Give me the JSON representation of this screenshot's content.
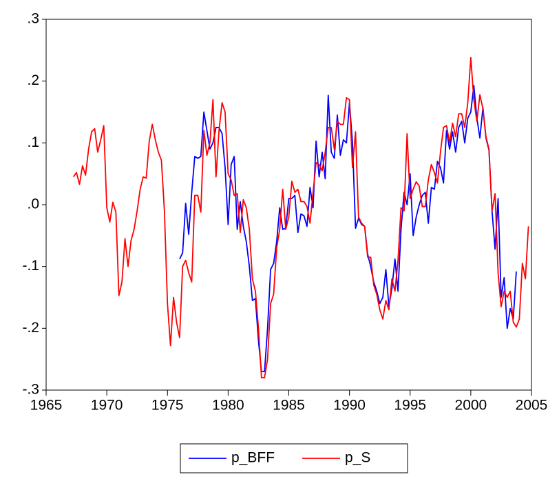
{
  "chart_data": {
    "type": "line",
    "xlim": [
      1965,
      2005
    ],
    "xticks": [
      1965,
      1970,
      1975,
      1980,
      1985,
      1990,
      1995,
      2000,
      2005
    ],
    "ylim": [
      -0.3,
      0.3
    ],
    "yticks": [
      {
        "value": -0.3,
        "label": "-.3"
      },
      {
        "value": -0.2,
        "label": "-.2"
      },
      {
        "value": -0.1,
        "label": "-.1"
      },
      {
        "value": 0,
        "label": ".0"
      },
      {
        "value": 0.1,
        "label": ".1"
      },
      {
        "value": 0.2,
        "label": ".2"
      },
      {
        "value": 0.3,
        "label": ".3"
      }
    ],
    "grid": false,
    "legend": "bottom",
    "series": [
      {
        "name": "p_BFF",
        "color": "#0000ff",
        "x": [
          1976,
          1976.25,
          1976.5,
          1976.75,
          1977,
          1977.25,
          1977.5,
          1977.75,
          1978,
          1978.25,
          1978.5,
          1978.75,
          1979,
          1979.25,
          1979.5,
          1979.75,
          1980,
          1980.25,
          1980.5,
          1980.75,
          1981,
          1981.25,
          1981.5,
          1981.75,
          1982,
          1982.25,
          1982.5,
          1982.75,
          1983,
          1983.25,
          1983.5,
          1983.75,
          1984,
          1984.25,
          1984.5,
          1984.75,
          1985,
          1985.25,
          1985.5,
          1985.75,
          1986,
          1986.25,
          1986.5,
          1986.75,
          1987,
          1987.25,
          1987.5,
          1987.75,
          1988,
          1988.25,
          1988.5,
          1988.75,
          1989,
          1989.25,
          1989.5,
          1989.75,
          1990,
          1990.25,
          1990.5,
          1990.75,
          1991,
          1991.25,
          1991.5,
          1991.75,
          1992,
          1992.25,
          1992.5,
          1992.75,
          1993,
          1993.25,
          1993.5,
          1993.75,
          1994,
          1994.25,
          1994.5,
          1994.75,
          1995,
          1995.25,
          1995.5,
          1995.75,
          1996,
          1996.25,
          1996.5,
          1996.75,
          1997,
          1997.25,
          1997.5,
          1997.75,
          1998,
          1998.25,
          1998.5,
          1998.75,
          1999,
          1999.25,
          1999.5,
          1999.75,
          2000,
          2000.25,
          2000.5,
          2000.75,
          2001,
          2001.25,
          2001.5,
          2001.75,
          2002,
          2002.25,
          2002.5,
          2002.75,
          2003,
          2003.25,
          2003.5,
          2003.75
        ],
        "values": [
          -0.088,
          -0.078,
          0.002,
          -0.048,
          0.02,
          0.078,
          0.075,
          0.078,
          0.15,
          0.12,
          0.09,
          0.1,
          0.125,
          0.125,
          0.115,
          0.06,
          -0.032,
          0.065,
          0.078,
          -0.04,
          0.005,
          -0.035,
          -0.06,
          -0.1,
          -0.155,
          -0.152,
          -0.22,
          -0.27,
          -0.27,
          -0.2,
          -0.105,
          -0.095,
          -0.06,
          -0.005,
          -0.04,
          -0.038,
          0.01,
          0.01,
          0.015,
          -0.045,
          -0.015,
          -0.018,
          -0.035,
          0.028,
          -0.005,
          0.103,
          0.045,
          0.085,
          0.042,
          0.177,
          0.085,
          0.075,
          0.145,
          0.08,
          0.105,
          0.1,
          0.165,
          0.1,
          -0.038,
          -0.022,
          -0.032,
          -0.035,
          -0.08,
          -0.1,
          -0.125,
          -0.14,
          -0.16,
          -0.15,
          -0.105,
          -0.165,
          -0.135,
          -0.088,
          -0.14,
          -0.04,
          0.02,
          0,
          0.05,
          -0.05,
          -0.02,
          0,
          0.015,
          0.02,
          -0.03,
          0.028,
          0.025,
          0.07,
          0.06,
          0.035,
          0.12,
          0.09,
          0.118,
          0.085,
          0.125,
          0.135,
          0.1,
          0.14,
          0.15,
          0.193,
          0.14,
          0.108,
          0.157,
          0.108,
          0.088,
          -0.01,
          -0.072,
          0.01,
          -0.15,
          -0.118,
          -0.2,
          -0.168,
          -0.185,
          -0.108
        ]
      },
      {
        "name": "p_S",
        "color": "#ff0000",
        "x": [
          1967.25,
          1967.5,
          1967.75,
          1968,
          1968.25,
          1968.5,
          1968.75,
          1969,
          1969.25,
          1969.5,
          1969.75,
          1970,
          1970.25,
          1970.5,
          1970.75,
          1971,
          1971.25,
          1971.5,
          1971.75,
          1972,
          1972.25,
          1972.5,
          1972.75,
          1973,
          1973.25,
          1973.5,
          1973.75,
          1974,
          1974.25,
          1974.5,
          1974.75,
          1975,
          1975.25,
          1975.5,
          1975.75,
          1976,
          1976.25,
          1976.5,
          1976.75,
          1977,
          1977.25,
          1977.5,
          1977.75,
          1978,
          1978.25,
          1978.5,
          1978.75,
          1979,
          1979.25,
          1979.5,
          1979.75,
          1980,
          1980.25,
          1980.5,
          1980.75,
          1981,
          1981.25,
          1981.5,
          1981.75,
          1982,
          1982.25,
          1982.5,
          1982.75,
          1983,
          1983.25,
          1983.5,
          1983.75,
          1984,
          1984.25,
          1984.5,
          1984.75,
          1985,
          1985.25,
          1985.5,
          1985.75,
          1986,
          1986.25,
          1986.5,
          1986.75,
          1987,
          1987.25,
          1987.5,
          1987.75,
          1988,
          1988.25,
          1988.5,
          1988.75,
          1989,
          1989.25,
          1989.5,
          1989.75,
          1990,
          1990.25,
          1990.5,
          1990.75,
          1991,
          1991.25,
          1991.5,
          1991.75,
          1992,
          1992.25,
          1992.5,
          1992.75,
          1993,
          1993.25,
          1993.5,
          1993.75,
          1994,
          1994.25,
          1994.5,
          1994.75,
          1995,
          1995.25,
          1995.5,
          1995.75,
          1996,
          1996.25,
          1996.5,
          1996.75,
          1997,
          1997.25,
          1997.5,
          1997.75,
          1998,
          1998.25,
          1998.5,
          1998.75,
          1999,
          1999.25,
          1999.5,
          1999.75,
          2000,
          2000.25,
          2000.5,
          2000.75,
          2001,
          2001.25,
          2001.5,
          2001.75,
          2002,
          2002.25,
          2002.5,
          2002.75,
          2003,
          2003.25,
          2003.5,
          2003.75,
          2004,
          2004.25,
          2004.5,
          2004.75
        ],
        "values": [
          0.045,
          0.052,
          0.033,
          0.063,
          0.048,
          0.09,
          0.118,
          0.123,
          0.085,
          0.105,
          0.128,
          -0.005,
          -0.028,
          0.004,
          -0.012,
          -0.147,
          -0.125,
          -0.055,
          -0.1,
          -0.058,
          -0.04,
          -0.01,
          0.025,
          0.045,
          0.043,
          0.103,
          0.13,
          0.105,
          0.085,
          0.072,
          -0.01,
          -0.16,
          -0.228,
          -0.15,
          -0.19,
          -0.215,
          -0.1,
          -0.09,
          -0.11,
          -0.125,
          0.015,
          0.015,
          -0.012,
          0.12,
          0.08,
          0.1,
          0.17,
          0.045,
          0.12,
          0.165,
          0.15,
          0.05,
          0.04,
          0.015,
          0.018,
          -0.045,
          0.008,
          -0.005,
          -0.04,
          -0.12,
          -0.14,
          -0.2,
          -0.28,
          -0.28,
          -0.25,
          -0.16,
          -0.145,
          -0.07,
          -0.04,
          0.025,
          -0.04,
          -0.02,
          0.038,
          0.02,
          0.025,
          0.005,
          0.005,
          -0.003,
          -0.03,
          0.02,
          0.068,
          0.065,
          0.055,
          0.085,
          0.125,
          0.125,
          0.09,
          0.135,
          0.13,
          0.13,
          0.173,
          0.17,
          0.06,
          0.118,
          -0.02,
          -0.03,
          -0.035,
          -0.085,
          -0.085,
          -0.13,
          -0.145,
          -0.17,
          -0.185,
          -0.155,
          -0.17,
          -0.12,
          -0.14,
          -0.09,
          -0.005,
          -0.01,
          0.115,
          0.01,
          0.025,
          0.037,
          0.03,
          -0.003,
          -0.003,
          0.04,
          0.065,
          0.052,
          0.035,
          0.085,
          0.125,
          0.128,
          0.1,
          0.132,
          0.11,
          0.147,
          0.147,
          0.125,
          0.165,
          0.238,
          0.17,
          0.135,
          0.178,
          0.155,
          0.11,
          0.09,
          -0.01,
          0.018,
          -0.11,
          -0.165,
          -0.14,
          -0.15,
          -0.14,
          -0.19,
          -0.198,
          -0.185,
          -0.095,
          -0.12,
          -0.035
        ]
      }
    ]
  }
}
